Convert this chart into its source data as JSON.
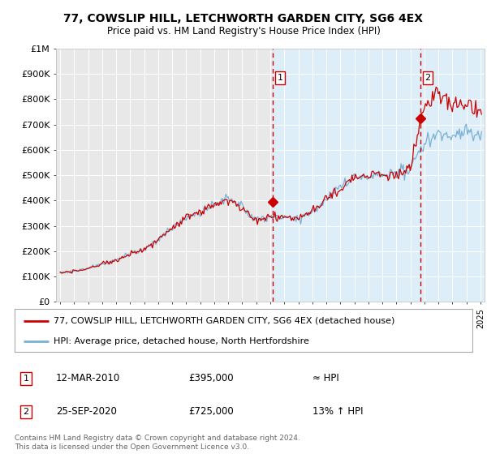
{
  "title": "77, COWSLIP HILL, LETCHWORTH GARDEN CITY, SG6 4EX",
  "subtitle": "Price paid vs. HM Land Registry's House Price Index (HPI)",
  "ylabel_values": [
    "£0",
    "£100K",
    "£200K",
    "£300K",
    "£400K",
    "£500K",
    "£600K",
    "£700K",
    "£800K",
    "£900K",
    "£1M"
  ],
  "ylim": [
    0,
    1000000
  ],
  "yticks": [
    0,
    100000,
    200000,
    300000,
    400000,
    500000,
    600000,
    700000,
    800000,
    900000,
    1000000
  ],
  "xlim_start": 1994.7,
  "xlim_end": 2025.3,
  "background_color": "#ffffff",
  "plot_bg_color": "#e8e8e8",
  "plot_bg_right_color": "#ddeeff",
  "grid_color": "#ffffff",
  "hpi_line_color": "#7ab0d4",
  "price_line_color": "#cc0000",
  "vline_color": "#cc0000",
  "transaction1_x": 2010.19,
  "transaction1_y": 395000,
  "transaction1_label": "1",
  "transaction1_date": "12-MAR-2010",
  "transaction1_price": "£395,000",
  "transaction1_vs": "≈ HPI",
  "transaction2_x": 2020.73,
  "transaction2_y": 725000,
  "transaction2_label": "2",
  "transaction2_date": "25-SEP-2020",
  "transaction2_price": "£725,000",
  "transaction2_vs": "13% ↑ HPI",
  "legend_line1": "77, COWSLIP HILL, LETCHWORTH GARDEN CITY, SG6 4EX (detached house)",
  "legend_line2": "HPI: Average price, detached house, North Hertfordshire",
  "footer": "Contains HM Land Registry data © Crown copyright and database right 2024.\nThis data is licensed under the Open Government Licence v3.0."
}
